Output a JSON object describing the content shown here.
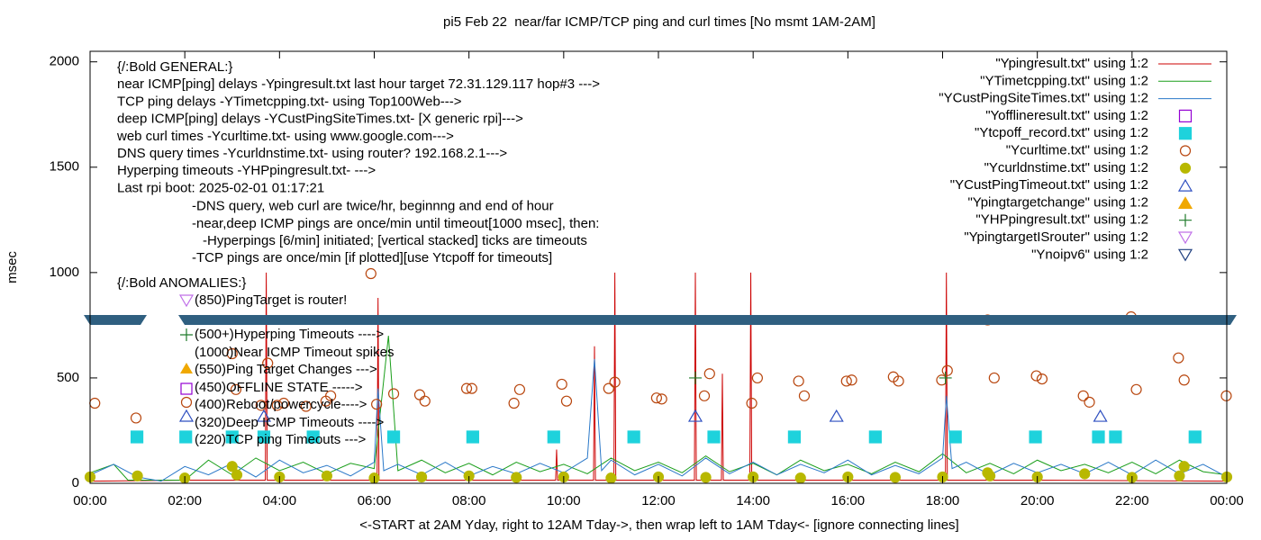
{
  "chart_data": {
    "type": "line",
    "title": "pi5 Feb 22  near/far ICMP/TCP ping and curl times [No msmt 1AM-2AM]",
    "y_label": "msec",
    "x_label": "<-START at 2AM Yday, right to 12AM Tday->, then wrap left to 1AM Tday<- [ignore connecting lines]",
    "xlim": [
      0,
      24
    ],
    "xticks": [
      {
        "value": 0,
        "label": "00:00"
      },
      {
        "value": 2,
        "label": "02:00"
      },
      {
        "value": 4,
        "label": "04:00"
      },
      {
        "value": 6,
        "label": "06:00"
      },
      {
        "value": 8,
        "label": "08:00"
      },
      {
        "value": 10,
        "label": "10:00"
      },
      {
        "value": 12,
        "label": "12:00"
      },
      {
        "value": 14,
        "label": "14:00"
      },
      {
        "value": 16,
        "label": "16:00"
      },
      {
        "value": 18,
        "label": "18:00"
      },
      {
        "value": 20,
        "label": "20:00"
      },
      {
        "value": 22,
        "label": "22:00"
      },
      {
        "value": 24,
        "label": "00:00"
      }
    ],
    "ylim": [
      0,
      2050
    ],
    "yticks": [
      0,
      500,
      1000,
      1500,
      2000
    ],
    "legend_position": "top-right",
    "notes": [
      "{/:Bold GENERAL:}",
      "near ICMP[ping] delays -Ypingresult.txt last hour target 72.31.129.117 hop#3 --->",
      "TCP ping delays -YTimetcpping.txt- using Top100Web--->",
      "deep ICMP[ping] delays -YCustPingSiteTimes.txt- [X generic rpi]--->",
      "web curl times -Ycurltime.txt- using www.google.com--->",
      "DNS query times -Ycurldnstime.txt- using router? 192.168.2.1--->",
      "Hyperping timeouts -YHPpingresult.txt- --->",
      "Last rpi boot: 2025-02-01 01:17:21",
      "-DNS query, web curl are twice/hr, beginnng and end of hour",
      "-near,deep ICMP pings are once/min until timeout[1000 msec], then:",
      "-Hyperpings [6/min] initiated; [vertical stacked] ticks are timeouts",
      "-TCP pings are once/min [if plotted][use Ytcpoff for timeouts]"
    ],
    "anomalies": [
      "{/:Bold ANOMALIES:}",
      "(850)PingTarget is router!",
      "(500+)Hyperping Timeouts ---->",
      "(1000)Near ICMP Timeout spikes",
      "(550)Ping Target Changes --->",
      "(450)OFFLINE STATE ----->",
      "(400)Reboot/powercycle---->",
      "(320)Deep ICMP Timeouts ---->",
      "(220)TCP ping Timeouts --->"
    ],
    "series": [
      {
        "name": "\"Ypingresult.txt\" using 1:2",
        "color": "#cc0000",
        "style": "line",
        "x": [
          0,
          2,
          3.7,
          3.72,
          3.74,
          5,
          6.06,
          6.08,
          6.1,
          8,
          9.83,
          9.85,
          9.87,
          10.63,
          10.65,
          10.67,
          11.06,
          11.08,
          11.1,
          12.76,
          12.78,
          12.8,
          13.33,
          13.35,
          13.37,
          13.93,
          13.95,
          13.97,
          16,
          18.06,
          18.08,
          18.1,
          20,
          24
        ],
        "values": [
          10,
          15,
          15,
          1000,
          15,
          15,
          15,
          880,
          15,
          15,
          15,
          160,
          15,
          15,
          650,
          15,
          15,
          1000,
          15,
          15,
          1000,
          15,
          15,
          520,
          15,
          15,
          1000,
          15,
          15,
          15,
          1000,
          15,
          15,
          10
        ]
      },
      {
        "name": "\"YTimetcpping.txt\" using 1:2",
        "color": "#1a9e1a",
        "style": "line",
        "x": [
          0,
          0.5,
          0.8,
          1.5,
          2,
          2.5,
          3,
          3.5,
          4,
          4.5,
          5,
          5.5,
          6,
          6.3,
          6.5,
          7,
          7.5,
          8,
          8.5,
          9,
          9.5,
          10,
          10.5,
          11,
          11.5,
          12,
          12.5,
          13,
          13.5,
          14,
          14.5,
          15,
          15.5,
          16,
          16.5,
          17,
          17.5,
          18,
          18.5,
          19,
          19.5,
          20,
          20.5,
          21,
          21.5,
          22,
          22.5,
          23,
          23.5,
          24
        ],
        "values": [
          50,
          90,
          15,
          15,
          15,
          110,
          40,
          120,
          60,
          100,
          45,
          95,
          70,
          700,
          60,
          110,
          50,
          95,
          40,
          100,
          55,
          90,
          45,
          120,
          60,
          100,
          50,
          130,
          55,
          95,
          40,
          110,
          60,
          90,
          45,
          100,
          55,
          140,
          50,
          95,
          45,
          110,
          60,
          90,
          50,
          100,
          45,
          110,
          55,
          40
        ]
      },
      {
        "name": "\"YCustPingSiteTimes.txt\" using 1:2",
        "color": "#2a78c8",
        "style": "line",
        "x": [
          0,
          0.5,
          1,
          1.5,
          2,
          2.5,
          3,
          3.5,
          4,
          4.5,
          5,
          5.5,
          6,
          6.08,
          6.2,
          6.5,
          7,
          7.5,
          8,
          8.5,
          9,
          9.5,
          10,
          10.5,
          10.65,
          10.8,
          11,
          11.5,
          12,
          12.5,
          13,
          13.5,
          14,
          14.5,
          15,
          15.5,
          16,
          16.5,
          17,
          17.5,
          18,
          18.08,
          18.2,
          18.5,
          19,
          19.5,
          20,
          20.5,
          21,
          21.5,
          22,
          22.5,
          23,
          23.5,
          24
        ],
        "values": [
          40,
          90,
          30,
          10,
          80,
          40,
          95,
          30,
          110,
          50,
          85,
          35,
          100,
          450,
          60,
          90,
          40,
          100,
          35,
          80,
          45,
          95,
          50,
          120,
          590,
          60,
          110,
          40,
          90,
          35,
          120,
          45,
          100,
          40,
          90,
          50,
          110,
          40,
          85,
          45,
          120,
          415,
          70,
          100,
          40,
          95,
          50,
          90,
          45,
          100,
          40,
          110,
          45,
          90,
          30
        ]
      },
      {
        "name": "\"Yofflineresult.txt\" using 1:2",
        "color": "#9400d3",
        "style": "open-square",
        "x": [],
        "values": []
      },
      {
        "name": "\"Ytcpoff_record.txt\" using 1:2",
        "color": "#1ed2dc",
        "style": "filled-square",
        "x": [
          0.99,
          2.02,
          3,
          3.67,
          4.71,
          6.41,
          8.08,
          9.79,
          11.48,
          13.17,
          14.87,
          16.58,
          18.27,
          19.96,
          21.29,
          21.65,
          23.33
        ],
        "values": [
          220,
          220,
          220,
          220,
          220,
          220,
          220,
          220,
          220,
          220,
          220,
          220,
          220,
          220,
          220,
          220,
          220
        ]
      },
      {
        "name": "\"Ycurltime.txt\" using 1:2",
        "color": "#b8460e",
        "style": "open-circle",
        "x": [
          0.1,
          0.97,
          3,
          3.08,
          3.61,
          3.75,
          3.95,
          4.09,
          4.56,
          4.98,
          5.08,
          5.93,
          6.05,
          6.41,
          6.96,
          7.07,
          7.95,
          8.06,
          8.95,
          9.07,
          9.96,
          10.06,
          10.95,
          11.08,
          11.96,
          12.07,
          12.97,
          13.08,
          13.97,
          14.09,
          14.96,
          15.08,
          15.97,
          16.08,
          16.96,
          17.07,
          17.98,
          18.1,
          18.95,
          19.09,
          19.98,
          20.1,
          20.97,
          21.1,
          21.98,
          22.09,
          22.98,
          23.1,
          23.99
        ],
        "values": [
          380,
          310,
          615,
          445,
          370,
          570,
          370,
          380,
          365,
          390,
          415,
          995,
          375,
          425,
          420,
          390,
          450,
          450,
          380,
          445,
          470,
          390,
          450,
          480,
          405,
          400,
          415,
          520,
          380,
          500,
          485,
          415,
          485,
          490,
          505,
          485,
          490,
          535,
          775,
          500,
          510,
          495,
          415,
          385,
          790,
          445,
          595,
          490,
          415
        ]
      },
      {
        "name": "\"Ycurldnstime.txt\" using 1:2",
        "color": "#b8b800",
        "style": "filled-circle",
        "x": [
          0,
          1,
          2,
          3,
          3.1,
          4,
          5,
          6,
          7,
          8,
          9,
          10,
          11,
          12,
          13,
          14,
          15,
          16,
          17,
          18,
          18.95,
          19,
          20,
          21,
          22,
          23,
          23.1,
          24
        ],
        "values": [
          30,
          35,
          25,
          80,
          40,
          30,
          35,
          25,
          30,
          35,
          28,
          30,
          25,
          30,
          28,
          30,
          25,
          30,
          28,
          30,
          50,
          35,
          30,
          45,
          28,
          35,
          80,
          30
        ]
      },
      {
        "name": "\"YCustPingTimeout.txt\" using 1:2",
        "color": "#2e4fc0",
        "style": "open-triangle",
        "x": [
          3.67,
          12.78,
          15.76,
          21.33
        ],
        "values": [
          320,
          320,
          320,
          320
        ]
      },
      {
        "name": "\"Ypingtargetchange\" using 1:2",
        "color": "#f0a800",
        "style": "filled-triangle",
        "x": [],
        "values": []
      },
      {
        "name": "\"YHPpingresult.txt\" using 1:2",
        "color": "#1e7a2a",
        "style": "plus",
        "x": [
          12.78,
          18.06
        ],
        "values": [
          500,
          500
        ]
      },
      {
        "name": "\"YpingtargetISrouter\" using 1:2",
        "color": "#c070e8",
        "style": "open-triangle-down",
        "x": [],
        "values": []
      },
      {
        "name": "\"Ynoipv6\" using 1:2",
        "color": "#1f3f7f",
        "style": "open-triangle-down",
        "x": [],
        "values": []
      }
    ]
  }
}
